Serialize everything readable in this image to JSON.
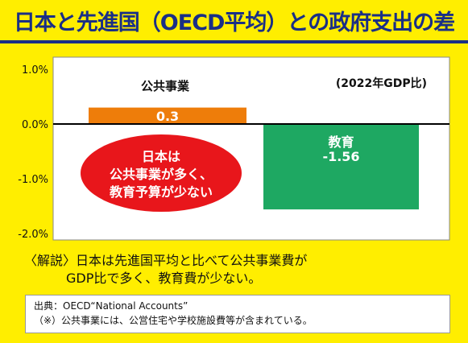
{
  "title": "日本と先進国（OECD平均）との政府支出の差",
  "chart_data": {
    "type": "bar",
    "unit_note": "(2022年GDP比)",
    "ylim": [
      -2.0,
      1.0
    ],
    "yticks": [
      "1.0%",
      "0.0%",
      "-1.0%",
      "-2.0%"
    ],
    "ytick_values": [
      1.0,
      0.0,
      -1.0,
      -2.0
    ],
    "categories": [
      "公共事業",
      "教育"
    ],
    "values": [
      0.3,
      -1.56
    ],
    "value_labels": [
      "0.3",
      "-1.56"
    ],
    "colors": [
      "#ee7d0a",
      "#1ea862"
    ],
    "grid": false
  },
  "callout": {
    "lines": [
      "日本は",
      "公共事業が多く、",
      "教育予算が少ない"
    ],
    "color": "#e8161b"
  },
  "note": {
    "line1": "〈解説〉日本は先進国平均と比べて公共事業費が",
    "line2": "GDP比で多く、教育費が少ない。"
  },
  "source": {
    "line1": "出典：OECD“National Accounts”",
    "line2": "（※）公共事業には、公営住宅や学校施設費等が含まれている。"
  },
  "colors": {
    "background": "#ffee00",
    "title": "#1a2f86"
  }
}
